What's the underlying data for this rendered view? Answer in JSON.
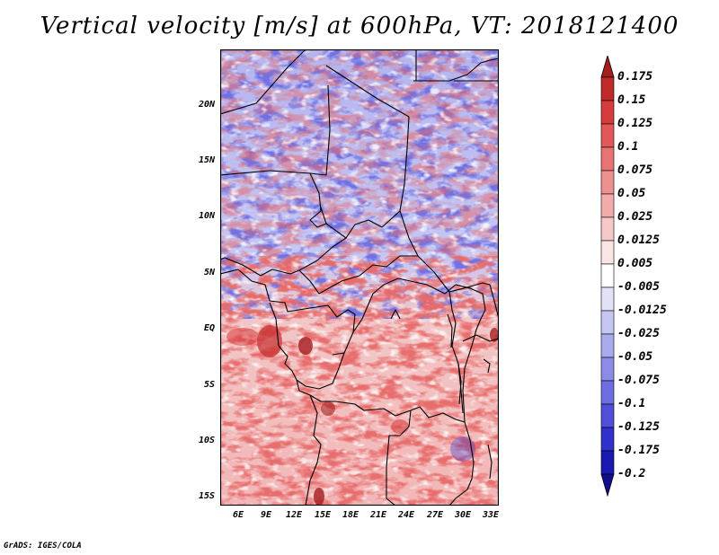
{
  "title": "Vertical velocity [m/s] at 600hPa, VT: 2018121400",
  "credit": "GrADS: IGES/COLA",
  "map": {
    "lat_labels": [
      "20N",
      "15N",
      "10N",
      "5N",
      "EQ",
      "5S",
      "10S",
      "15S"
    ],
    "lon_labels": [
      "6E",
      "9E",
      "12E",
      "15E",
      "18E",
      "21E",
      "24E",
      "27E",
      "30E",
      "33E"
    ]
  },
  "colorbar": {
    "labels": [
      "0.175",
      "0.15",
      "0.125",
      "0.1",
      "0.075",
      "0.05",
      "0.025",
      "0.0125",
      "0.005",
      "-0.005",
      "-0.0125",
      "-0.025",
      "-0.05",
      "-0.075",
      "-0.1",
      "-0.125",
      "-0.175",
      "-0.2"
    ],
    "colors": [
      "#a51e1e",
      "#c02a2a",
      "#d63c3c",
      "#e25858",
      "#e77373",
      "#ed9090",
      "#f2abab",
      "#f7c8c8",
      "#fbe4e4",
      "#ffffff",
      "#e2e2f7",
      "#c6c6f2",
      "#aaaaee",
      "#8c8ce8",
      "#6e6ee2",
      "#4f4fd9",
      "#3030cc",
      "#1a1ab3",
      "#10108f"
    ]
  }
}
